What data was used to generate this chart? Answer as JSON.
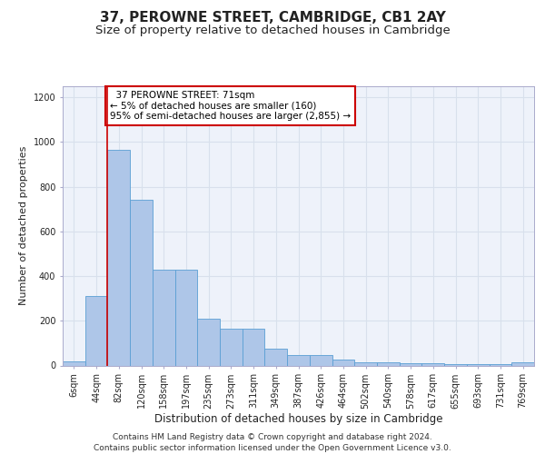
{
  "title": "37, PEROWNE STREET, CAMBRIDGE, CB1 2AY",
  "subtitle": "Size of property relative to detached houses in Cambridge",
  "xlabel": "Distribution of detached houses by size in Cambridge",
  "ylabel": "Number of detached properties",
  "categories": [
    "6sqm",
    "44sqm",
    "82sqm",
    "120sqm",
    "158sqm",
    "197sqm",
    "235sqm",
    "273sqm",
    "311sqm",
    "349sqm",
    "387sqm",
    "426sqm",
    "464sqm",
    "502sqm",
    "540sqm",
    "578sqm",
    "617sqm",
    "655sqm",
    "693sqm",
    "731sqm",
    "769sqm"
  ],
  "values": [
    20,
    310,
    965,
    740,
    430,
    430,
    210,
    165,
    165,
    75,
    48,
    48,
    28,
    14,
    14,
    10,
    10,
    5,
    5,
    5,
    15
  ],
  "bar_color": "#aec6e8",
  "bar_edge_color": "#5a9fd4",
  "annotation_text": "  37 PEROWNE STREET: 71sqm\n← 5% of detached houses are smaller (160)\n95% of semi-detached houses are larger (2,855) →",
  "annotation_box_color": "#ffffff",
  "annotation_border_color": "#cc0000",
  "vline_color": "#cc0000",
  "vline_x": 1.5,
  "ylim": [
    0,
    1250
  ],
  "yticks": [
    0,
    200,
    400,
    600,
    800,
    1000,
    1200
  ],
  "grid_color": "#d8e0ec",
  "bg_color": "#eef2fa",
  "footer": "Contains HM Land Registry data © Crown copyright and database right 2024.\nContains public sector information licensed under the Open Government Licence v3.0.",
  "title_fontsize": 11,
  "subtitle_fontsize": 9.5,
  "xlabel_fontsize": 8.5,
  "ylabel_fontsize": 8,
  "tick_fontsize": 7,
  "annotation_fontsize": 7.5,
  "footer_fontsize": 6.5
}
